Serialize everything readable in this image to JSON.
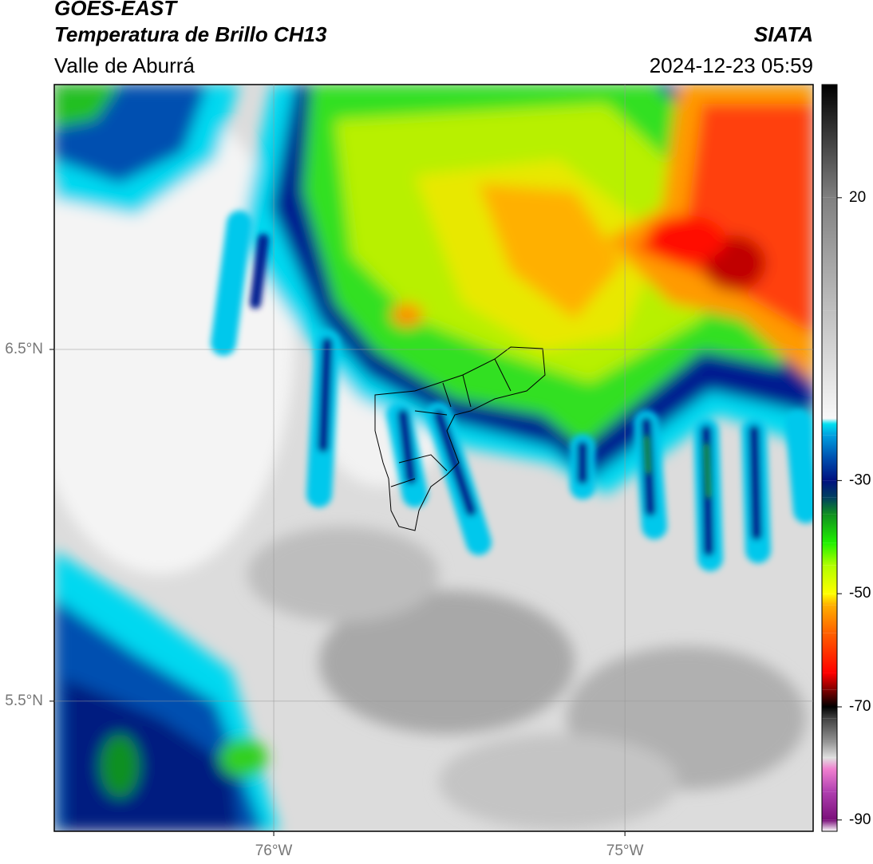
{
  "header": {
    "title": "GOES-EAST",
    "subtitle": "Temperatura de Brillo CH13",
    "region": "Valle de Aburrá",
    "source": "SIATA",
    "datetime": "2024-12-23 05:59"
  },
  "map": {
    "xlim": [
      -76.625,
      -74.464
    ],
    "ylim": [
      5.13,
      7.253
    ],
    "xticks": [
      {
        "value": -76,
        "label": "76°W"
      },
      {
        "value": -75,
        "label": "75°W"
      }
    ],
    "yticks": [
      {
        "value": 6.5,
        "label": "6.5°N"
      },
      {
        "value": 5.5,
        "label": "5.5°N"
      }
    ],
    "grid": true
  },
  "colorbar": {
    "lim": [
      -92,
      40
    ],
    "ticks": [
      20,
      -30,
      -50,
      -70,
      -90
    ],
    "stops": [
      {
        "value": -92,
        "color": "#ffffff"
      },
      {
        "value": -90,
        "color": "#7a0f7a"
      },
      {
        "value": -85,
        "color": "#b040b0"
      },
      {
        "value": -81,
        "color": "#f080d0"
      },
      {
        "value": -79,
        "color": "#e0e0e0"
      },
      {
        "value": -76,
        "color": "#909090"
      },
      {
        "value": -72,
        "color": "#404040"
      },
      {
        "value": -70,
        "color": "#000000"
      },
      {
        "value": -67,
        "color": "#800000"
      },
      {
        "value": -64,
        "color": "#ff0000"
      },
      {
        "value": -57,
        "color": "#ff6000"
      },
      {
        "value": -52,
        "color": "#ffb000"
      },
      {
        "value": -50,
        "color": "#ffff00"
      },
      {
        "value": -45,
        "color": "#b0ff00"
      },
      {
        "value": -41,
        "color": "#20f000"
      },
      {
        "value": -36,
        "color": "#109020"
      },
      {
        "value": -33,
        "color": "#004060"
      },
      {
        "value": -30,
        "color": "#001080"
      },
      {
        "value": -26,
        "color": "#0050b0"
      },
      {
        "value": -22,
        "color": "#00a0e0"
      },
      {
        "value": -20,
        "color": "#00e0f0"
      },
      {
        "value": -19,
        "color": "#f8f8f8"
      },
      {
        "value": 0,
        "color": "#c0c0c0"
      },
      {
        "value": 20,
        "color": "#808080"
      },
      {
        "value": 40,
        "color": "#000000"
      }
    ]
  }
}
